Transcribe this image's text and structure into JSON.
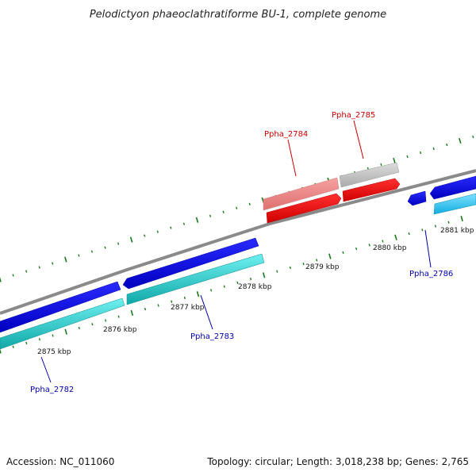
{
  "title": "Pelodictyon phaeoclathratiforme BU-1, complete genome",
  "footer": {
    "accession": "Accession: NC_011060",
    "summary": "Topology: circular; Length: 3,018,238 bp; Genes: 2,765"
  },
  "scale_labels": [
    "2875 kbp",
    "2876 kbp",
    "2877 kbp",
    "2878 kbp",
    "2879 kbp",
    "2880 kbp",
    "2881 kbp"
  ],
  "genes": [
    {
      "name": "Ppha_2782",
      "color": "#0000aa"
    },
    {
      "name": "Ppha_2783",
      "color": "#0000aa"
    },
    {
      "name": "Ppha_2784",
      "color": "#cc0000"
    },
    {
      "name": "Ppha_2785",
      "color": "#cc0000"
    },
    {
      "name": "Ppha_2786",
      "color": "#0000aa"
    }
  ],
  "colors": {
    "forward_strand": "#1010e0",
    "reverse_strand": "#20c8c8",
    "highlight_strong": "#ee1010",
    "highlight_faded": "#ee8888",
    "faded_grey": "#bbbbbb",
    "backbone": "#888888",
    "tick": "#1a7a1a"
  }
}
